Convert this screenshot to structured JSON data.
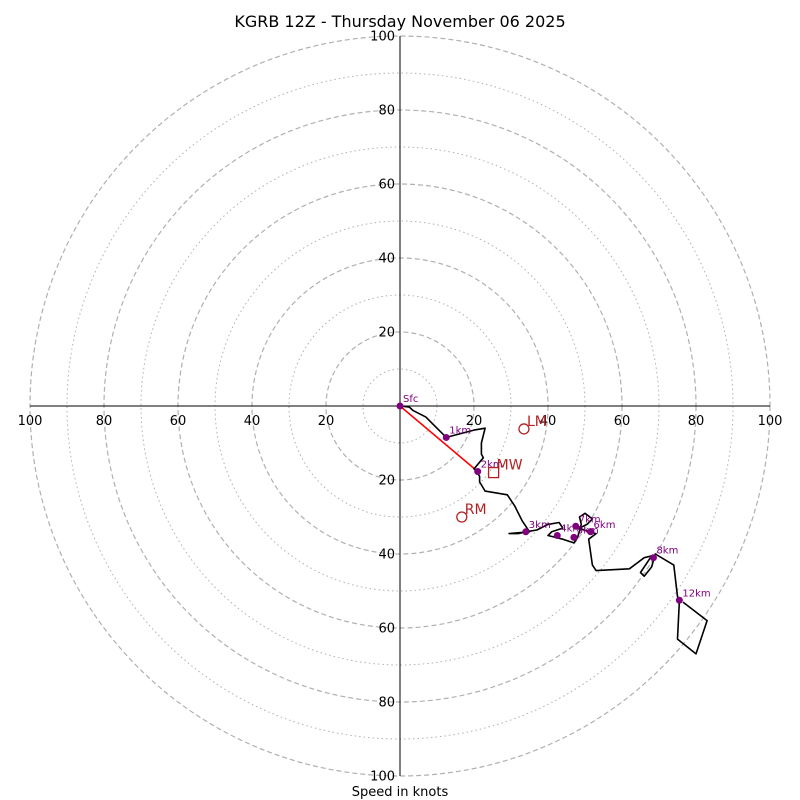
{
  "chart_data": {
    "type": "hodograph",
    "title": "KGRB 12Z - Thursday November 06 2025",
    "xlabel": "Speed in knots",
    "max_range": 100,
    "major_rings": [
      20,
      40,
      60,
      80,
      100
    ],
    "minor_rings": [
      10,
      30,
      50,
      70,
      90
    ],
    "axis_ticks": {
      "top": [
        "20",
        "40",
        "60",
        "80",
        "100"
      ],
      "bottom": [
        "20",
        "40",
        "60",
        "80",
        "100"
      ],
      "left": [
        "20",
        "40",
        "60",
        "80",
        "100"
      ],
      "right": [
        "20",
        "40",
        "60",
        "80",
        "100"
      ]
    },
    "trace": [
      [
        0,
        0
      ],
      [
        2.5,
        -0.3
      ],
      [
        3.5,
        -1.2
      ],
      [
        7,
        -3
      ],
      [
        10,
        -6
      ],
      [
        12.5,
        -8.5
      ],
      [
        20,
        -6.5
      ],
      [
        23,
        -6
      ],
      [
        22,
        -10
      ],
      [
        22,
        -13
      ],
      [
        22.5,
        -14
      ],
      [
        20,
        -17
      ],
      [
        20.5,
        -17.5
      ],
      [
        21.5,
        -19
      ],
      [
        21.5,
        -20.5
      ],
      [
        23,
        -23
      ],
      [
        29,
        -24
      ],
      [
        31,
        -27
      ],
      [
        33,
        -31
      ],
      [
        35,
        -34
      ],
      [
        29.5,
        -34.5
      ],
      [
        32,
        -34.5
      ],
      [
        34,
        -34
      ],
      [
        37,
        -33.5
      ],
      [
        40,
        -32
      ],
      [
        43,
        -31.5
      ],
      [
        44,
        -33
      ],
      [
        41,
        -34
      ],
      [
        40,
        -35
      ],
      [
        42,
        -35.5
      ],
      [
        44,
        -36
      ],
      [
        47,
        -37
      ],
      [
        48,
        -35.5
      ],
      [
        49,
        -32
      ],
      [
        48.5,
        -30
      ],
      [
        50,
        -29
      ],
      [
        52,
        -30.5
      ],
      [
        50.5,
        -32
      ],
      [
        48.5,
        -33
      ],
      [
        51,
        -34
      ],
      [
        53,
        -34.5
      ],
      [
        51,
        -36
      ],
      [
        52,
        -43
      ],
      [
        53,
        -44.5
      ],
      [
        62,
        -44
      ],
      [
        66,
        -41
      ],
      [
        68,
        -40.5
      ],
      [
        65,
        -45
      ],
      [
        66,
        -46
      ],
      [
        68,
        -43.5
      ],
      [
        69,
        -40
      ],
      [
        74,
        -43
      ],
      [
        75,
        -51.5
      ],
      [
        75.5,
        -52.5
      ],
      [
        75,
        -63
      ],
      [
        80,
        -67
      ],
      [
        83,
        -58
      ],
      [
        76.5,
        -53
      ]
    ],
    "height_markers": [
      {
        "label": "Sfc",
        "u": 0,
        "v": 0
      },
      {
        "label": "1km",
        "u": 12.5,
        "v": -8.5
      },
      {
        "label": "2km",
        "u": 21,
        "v": -17.7
      },
      {
        "label": "3km",
        "u": 34,
        "v": -34
      },
      {
        "label": "4km",
        "u": 42.5,
        "v": -35
      },
      {
        "label": "5km",
        "u": 47,
        "v": -35.5
      },
      {
        "label": "6km",
        "u": 51.5,
        "v": -34
      },
      {
        "label": "7km",
        "u": 47.5,
        "v": -32.5
      },
      {
        "label": "8km",
        "u": 68.5,
        "v": -41
      },
      {
        "label": "12km",
        "u": 75.5,
        "v": -52.5
      }
    ],
    "storm_motion": {
      "mean_wind": {
        "label": "MW",
        "u": 25.3,
        "v": -18,
        "marker": "square"
      },
      "left_mover": {
        "label": "LM",
        "u": 33.5,
        "v": -6.2,
        "marker": "circle"
      },
      "right_mover": {
        "label": "RM",
        "u": 16.7,
        "v": -30,
        "marker": "circle"
      },
      "shear_vector": {
        "from": [
          0,
          0
        ],
        "to": [
          21,
          -17.7
        ]
      }
    },
    "colors": {
      "trace": "#000000",
      "marker": "#800080",
      "storm": "#b22222",
      "shear": "#ff0000",
      "ring": "#b0b0b0"
    }
  }
}
